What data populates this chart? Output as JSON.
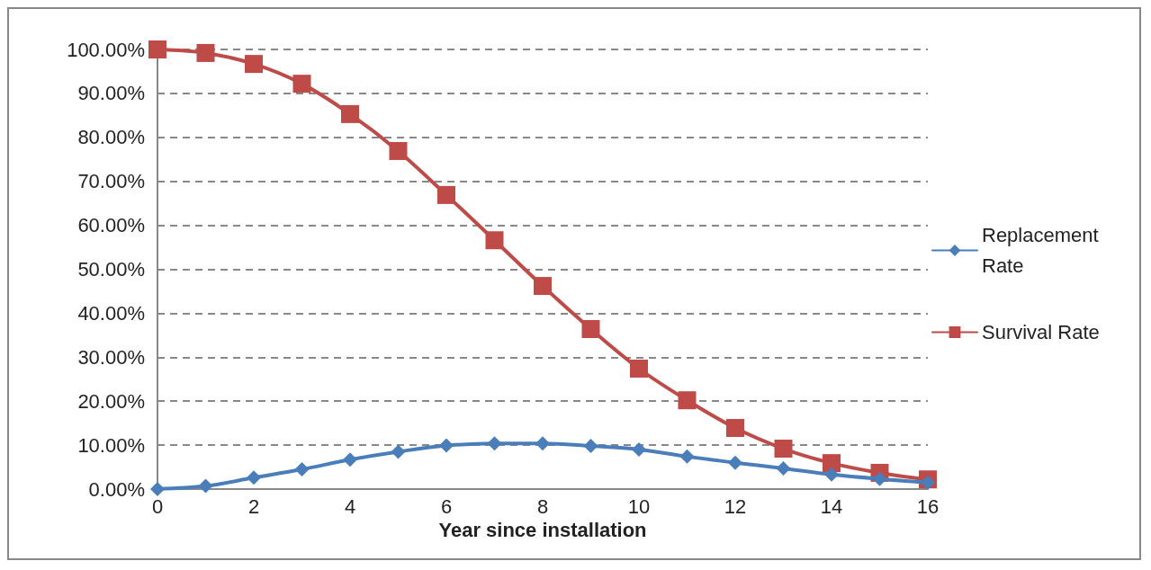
{
  "chart_data": {
    "type": "line",
    "xlabel": "Year since installation",
    "x": [
      0,
      1,
      2,
      3,
      4,
      5,
      6,
      7,
      8,
      9,
      10,
      11,
      12,
      13,
      14,
      15,
      16
    ],
    "xlim": [
      0,
      16
    ],
    "xticks": [
      0,
      2,
      4,
      6,
      8,
      10,
      12,
      14,
      16
    ],
    "ylim": [
      0,
      100
    ],
    "yticks": [
      {
        "value": 0,
        "label": "0.00%"
      },
      {
        "value": 10,
        "label": "10.00%"
      },
      {
        "value": 20,
        "label": "20.00%"
      },
      {
        "value": 30,
        "label": "30.00%"
      },
      {
        "value": 40,
        "label": "40.00%"
      },
      {
        "value": 50,
        "label": "50.00%"
      },
      {
        "value": 60,
        "label": "60.00%"
      },
      {
        "value": 70,
        "label": "70.00%"
      },
      {
        "value": 80,
        "label": "80.00%"
      },
      {
        "value": 90,
        "label": "90.00%"
      },
      {
        "value": 100,
        "label": "100.00%"
      }
    ],
    "grid": "y",
    "legend": "right",
    "line_style": "solid",
    "series": [
      {
        "name": "Replacement Rate",
        "color": "#4a7ebb",
        "marker": "diamond",
        "values": [
          0,
          0.7,
          2.6,
          4.5,
          6.7,
          8.5,
          9.9,
          10.4,
          10.4,
          9.8,
          9.0,
          7.4,
          6.0,
          4.7,
          3.3,
          2.3,
          1.5
        ]
      },
      {
        "name": "Survival Rate",
        "color": "#be4b48",
        "marker": "square",
        "values": [
          100,
          99.2,
          96.7,
          92.2,
          85.3,
          76.9,
          66.9,
          56.6,
          46.2,
          36.4,
          27.4,
          20.2,
          13.9,
          9.2,
          5.9,
          3.7,
          2.2
        ]
      }
    ]
  }
}
